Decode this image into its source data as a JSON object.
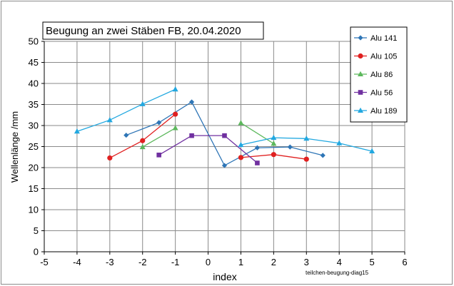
{
  "chart_data": {
    "type": "scatter",
    "title": "Beugung an zwei Stäben FB, 20.04.2020",
    "xlabel": "index",
    "ylabel": "Wellenlänge /mm",
    "xlim": [
      -5,
      6
    ],
    "ylim": [
      0,
      50
    ],
    "xticks": [
      -5,
      -4,
      -3,
      -2,
      -1,
      0,
      1,
      2,
      3,
      4,
      5,
      6
    ],
    "yticks": [
      0,
      5,
      10,
      15,
      20,
      25,
      30,
      35,
      40,
      45,
      50
    ],
    "grid": true,
    "legend_position": "top-right",
    "annotation": "teilchen-beugung-diag15",
    "series": [
      {
        "name": "Alu 141",
        "color": "#2e75b6",
        "marker": "diamond",
        "segments": [
          [
            [
              -2.5,
              27.7
            ],
            [
              -1.5,
              30.7
            ],
            [
              -0.5,
              35.6
            ],
            [
              0.5,
              20.5
            ],
            [
              1.5,
              24.7
            ],
            [
              2.5,
              24.9
            ],
            [
              3.5,
              22.9
            ]
          ]
        ]
      },
      {
        "name": "Alu 105",
        "color": "#e02020",
        "marker": "circle",
        "segments": [
          [
            [
              -3,
              22.3
            ],
            [
              -2,
              26.4
            ],
            [
              -1,
              32.7
            ]
          ],
          [
            [
              1,
              22.4
            ],
            [
              2,
              23.1
            ],
            [
              3,
              22.0
            ]
          ]
        ]
      },
      {
        "name": "Alu 86",
        "color": "#5cb85c",
        "marker": "triangle",
        "segments": [
          [
            [
              -2,
              24.9
            ],
            [
              -1,
              29.4
            ]
          ],
          [
            [
              1,
              30.6
            ],
            [
              2,
              25.7
            ]
          ]
        ]
      },
      {
        "name": "Alu 56",
        "color": "#7030a0",
        "marker": "square",
        "segments": [
          [
            [
              -1.5,
              23.0
            ],
            [
              -0.5,
              27.6
            ],
            [
              0.5,
              27.6
            ],
            [
              1.5,
              21.1
            ]
          ]
        ]
      },
      {
        "name": "Alu 189",
        "color": "#22a8e0",
        "marker": "triangle",
        "segments": [
          [
            [
              -4,
              28.6
            ],
            [
              -3,
              31.3
            ],
            [
              -2,
              35.1
            ],
            [
              -1,
              38.6
            ]
          ],
          [
            [
              1,
              25.4
            ],
            [
              2,
              27.1
            ],
            [
              3,
              26.9
            ],
            [
              4,
              25.8
            ],
            [
              5,
              23.9
            ]
          ]
        ]
      }
    ]
  }
}
